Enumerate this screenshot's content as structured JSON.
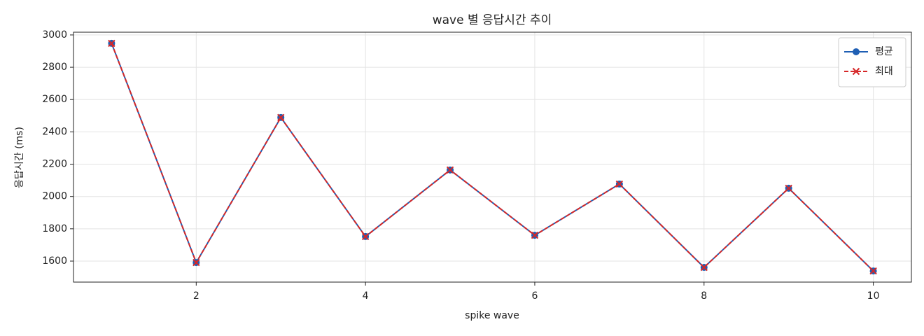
{
  "chart_data": {
    "type": "line",
    "title": "wave 별 응답시간 추이",
    "x_label": "spike wave",
    "y_label": "응답시간 (ms)",
    "x": [
      1,
      2,
      3,
      4,
      5,
      6,
      7,
      8,
      9,
      10
    ],
    "series": [
      {
        "name": "평균",
        "color": "#1f5fb4",
        "marker": "circle",
        "dash": false,
        "values": [
          2948,
          1591,
          2489,
          1752,
          2164,
          1760,
          2077,
          1561,
          2051,
          1539
        ]
      },
      {
        "name": "최대",
        "color": "#d62728",
        "marker": "x",
        "dash": true,
        "values": [
          2948,
          1591,
          2489,
          1752,
          2164,
          1760,
          2077,
          1561,
          2051,
          1539
        ]
      }
    ],
    "xlim": [
      0.55,
      10.45
    ],
    "xticks": [
      2,
      4,
      6,
      8,
      10
    ],
    "ylim": [
      1470,
      3017
    ],
    "yticks": [
      1600,
      1800,
      2000,
      2200,
      2400,
      2600,
      2800,
      3000
    ],
    "grid": true,
    "legend": "upper right"
  }
}
